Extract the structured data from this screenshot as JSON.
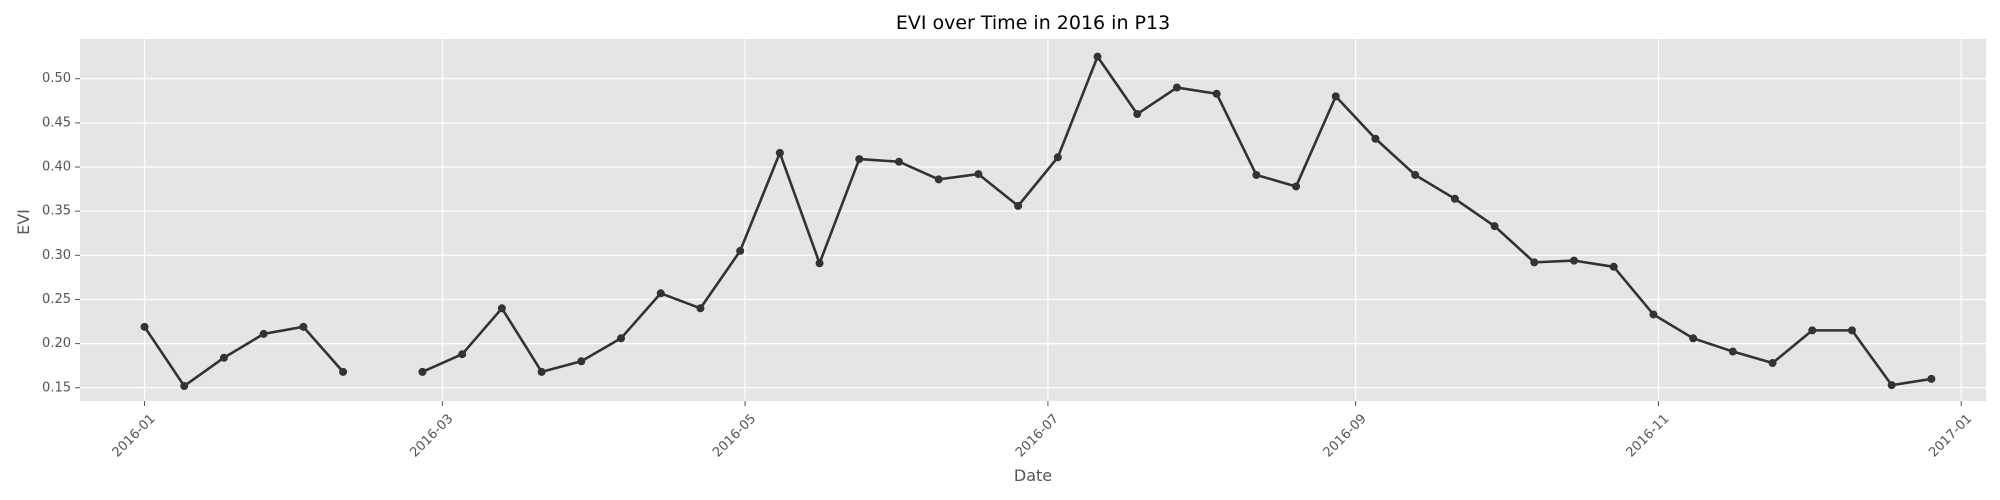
{
  "chart_data": {
    "type": "line",
    "title": "EVI over Time in 2016 in P13",
    "xlabel": "Date",
    "ylabel": "EVI",
    "xlim": [
      "2015-12-19",
      "2017-01-06"
    ],
    "ylim": [
      0.135,
      0.545
    ],
    "grid": true,
    "x_ticks": [
      "2016-01",
      "2016-03",
      "2016-05",
      "2016-07",
      "2016-09",
      "2016-11",
      "2017-01"
    ],
    "y_ticks": [
      "0.15",
      "0.20",
      "0.25",
      "0.30",
      "0.35",
      "0.40",
      "0.45",
      "0.50"
    ],
    "series": [
      {
        "color": "#333333",
        "marker": "circle",
        "points": [
          {
            "x": "2016-01-01",
            "y": 0.219
          },
          {
            "x": "2016-01-09",
            "y": 0.152
          },
          {
            "x": "2016-01-17",
            "y": 0.184
          },
          {
            "x": "2016-01-25",
            "y": 0.211
          },
          {
            "x": "2016-02-02",
            "y": 0.219
          },
          {
            "x": "2016-02-10",
            "y": 0.168
          },
          {
            "x": "2016-02-18",
            "y": null
          },
          {
            "x": "2016-02-26",
            "y": 0.168
          },
          {
            "x": "2016-03-05",
            "y": 0.188
          },
          {
            "x": "2016-03-13",
            "y": 0.24
          },
          {
            "x": "2016-03-21",
            "y": 0.168
          },
          {
            "x": "2016-03-29",
            "y": 0.18
          },
          {
            "x": "2016-04-06",
            "y": 0.206
          },
          {
            "x": "2016-04-14",
            "y": 0.257
          },
          {
            "x": "2016-04-22",
            "y": 0.24
          },
          {
            "x": "2016-04-30",
            "y": 0.305
          },
          {
            "x": "2016-05-08",
            "y": 0.416
          },
          {
            "x": "2016-05-16",
            "y": 0.291
          },
          {
            "x": "2016-05-24",
            "y": 0.409
          },
          {
            "x": "2016-06-01",
            "y": 0.406
          },
          {
            "x": "2016-06-09",
            "y": 0.386
          },
          {
            "x": "2016-06-17",
            "y": 0.392
          },
          {
            "x": "2016-06-25",
            "y": 0.356
          },
          {
            "x": "2016-07-03",
            "y": 0.411
          },
          {
            "x": "2016-07-11",
            "y": 0.525
          },
          {
            "x": "2016-07-19",
            "y": 0.46
          },
          {
            "x": "2016-07-27",
            "y": 0.49
          },
          {
            "x": "2016-08-04",
            "y": 0.483
          },
          {
            "x": "2016-08-12",
            "y": 0.391
          },
          {
            "x": "2016-08-20",
            "y": 0.378
          },
          {
            "x": "2016-08-28",
            "y": 0.48
          },
          {
            "x": "2016-09-05",
            "y": 0.432
          },
          {
            "x": "2016-09-13",
            "y": 0.391
          },
          {
            "x": "2016-09-21",
            "y": 0.364
          },
          {
            "x": "2016-09-29",
            "y": 0.333
          },
          {
            "x": "2016-10-07",
            "y": 0.292
          },
          {
            "x": "2016-10-15",
            "y": 0.294
          },
          {
            "x": "2016-10-23",
            "y": 0.287
          },
          {
            "x": "2016-10-31",
            "y": 0.233
          },
          {
            "x": "2016-11-08",
            "y": 0.206
          },
          {
            "x": "2016-11-16",
            "y": 0.191
          },
          {
            "x": "2016-11-24",
            "y": 0.178
          },
          {
            "x": "2016-12-02",
            "y": 0.215
          },
          {
            "x": "2016-12-10",
            "y": 0.215
          },
          {
            "x": "2016-12-18",
            "y": 0.153
          },
          {
            "x": "2016-12-26",
            "y": 0.16
          }
        ]
      }
    ]
  },
  "colors": {
    "plot_background": "#e5e5e5",
    "grid": "#ffffff",
    "line": "#333333",
    "tick_label": "#555555"
  }
}
